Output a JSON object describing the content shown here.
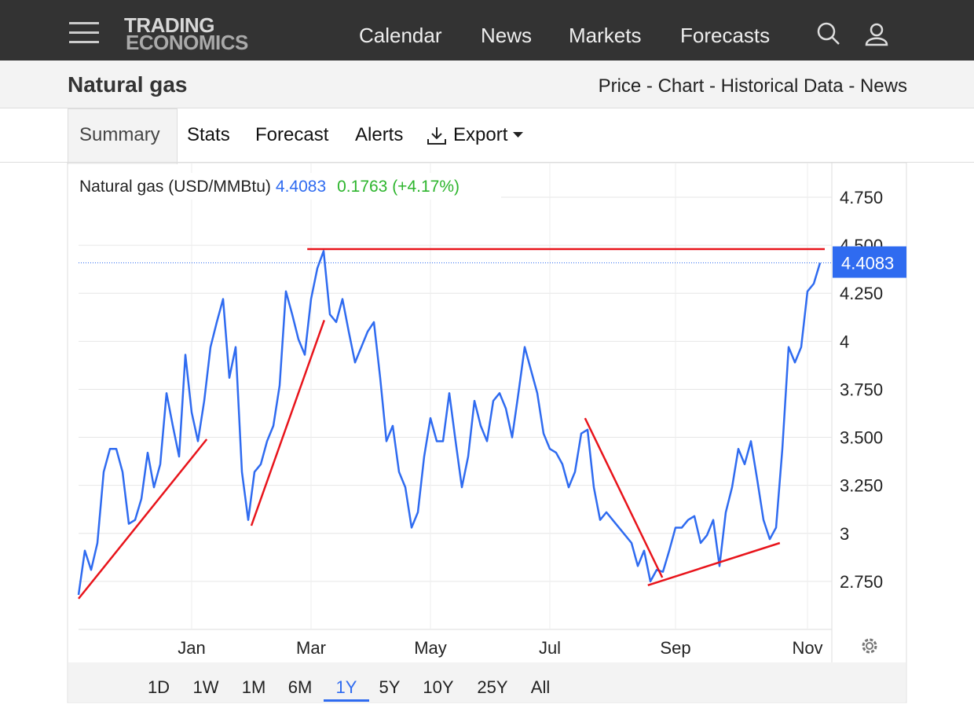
{
  "header": {
    "logo": [
      "TRADING",
      "ECONOMICS"
    ],
    "nav": [
      "Calendar",
      "News",
      "Markets",
      "Forecasts"
    ]
  },
  "title": "Natural gas",
  "links": "Price - Chart - Historical Data - News",
  "tabs": [
    "Summary",
    "Stats",
    "Forecast",
    "Alerts",
    "Export"
  ],
  "chart_data": {
    "type": "line",
    "title": "Natural gas (USD/MMBtu)",
    "change": "0.1763 (+4.17%)",
    "color": "#2f6bf0",
    "categories": [
      null,
      null,
      null,
      null,
      null,
      null,
      null,
      null,
      null,
      null,
      null,
      null,
      null,
      null,
      null,
      null,
      null,
      null,
      "Jan",
      null,
      null,
      null,
      null,
      null,
      null,
      null,
      null,
      null,
      null,
      null,
      null,
      null,
      null,
      null,
      null,
      null,
      null,
      "Mar",
      null,
      null,
      null,
      null,
      null,
      null,
      null,
      null,
      null,
      null,
      null,
      null,
      null,
      null,
      null,
      null,
      null,
      null,
      "May",
      null,
      null,
      null,
      null,
      null,
      null,
      null,
      null,
      null,
      null,
      null,
      null,
      null,
      null,
      null,
      null,
      null,
      null,
      "Jul",
      null,
      null,
      null,
      null,
      null,
      null,
      null,
      null,
      null,
      null,
      null,
      null,
      null,
      null,
      null,
      null,
      null,
      null,
      null,
      "Sep",
      null,
      null,
      null,
      null,
      null,
      null,
      null,
      null,
      null,
      null,
      null,
      null,
      null,
      null,
      null,
      null,
      null,
      null,
      null,
      null,
      "Nov",
      null,
      null
    ],
    "values": [
      2.68,
      2.91,
      2.81,
      2.95,
      3.32,
      3.44,
      3.44,
      3.32,
      3.05,
      3.07,
      3.18,
      3.42,
      3.24,
      3.36,
      3.73,
      3.56,
      3.4,
      3.93,
      3.63,
      3.48,
      3.69,
      3.97,
      4.1,
      4.22,
      3.81,
      3.97,
      3.32,
      3.07,
      3.32,
      3.36,
      3.48,
      3.56,
      3.77,
      4.26,
      4.14,
      4.01,
      3.93,
      4.22,
      4.38,
      4.47,
      4.14,
      4.1,
      4.22,
      4.05,
      3.89,
      3.97,
      4.05,
      4.1,
      3.81,
      3.48,
      3.56,
      3.32,
      3.24,
      3.03,
      3.11,
      3.4,
      3.6,
      3.48,
      3.48,
      3.73,
      3.48,
      3.24,
      3.4,
      3.69,
      3.56,
      3.48,
      3.69,
      3.73,
      3.65,
      3.5,
      3.73,
      3.97,
      3.85,
      3.73,
      3.52,
      3.44,
      3.42,
      3.36,
      3.24,
      3.32,
      3.52,
      3.54,
      3.24,
      3.07,
      3.11,
      3.07,
      3.03,
      2.99,
      2.95,
      2.83,
      2.91,
      2.75,
      2.81,
      2.8,
      2.91,
      3.03,
      3.03,
      3.07,
      3.09,
      2.95,
      2.99,
      3.07,
      2.83,
      3.11,
      3.24,
      3.44,
      3.36,
      3.48,
      3.28,
      3.07,
      2.97,
      3.03,
      3.44,
      3.97,
      3.89,
      3.97,
      4.26,
      4.3,
      4.4083
    ],
    "ylim": [
      2.5,
      4.93
    ],
    "yticks": [
      {
        "value": 2.75,
        "label": "2.750"
      },
      3,
      {
        "value": 3.25,
        "label": "3.250"
      },
      {
        "value": 3.5,
        "label": "3.500"
      },
      {
        "value": 3.75,
        "label": "3.750"
      },
      4,
      {
        "value": 4.25,
        "label": "4.250"
      },
      {
        "value": 4.5,
        "label": "4.500"
      },
      {
        "value": 4.75,
        "label": "4.750"
      }
    ],
    "grid": true,
    "trendline_color": "#e8141b",
    "trendlines": [
      {
        "x": [
          0,
          20.4
        ],
        "y": [
          2.66,
          3.49
        ]
      },
      {
        "x": [
          27.5,
          39.1
        ],
        "y": [
          3.04,
          4.11
        ]
      },
      {
        "x": [
          36.4,
          118.75
        ],
        "y": [
          4.48,
          4.48
        ]
      },
      {
        "x": [
          80.6,
          92.9
        ],
        "y": [
          3.6,
          2.77
        ]
      },
      {
        "x": [
          90.6,
          111.6
        ],
        "y": [
          2.73,
          2.95
        ]
      }
    ]
  },
  "ranges": [
    "1D",
    "1W",
    "1M",
    "6M",
    "1Y",
    "5Y",
    "10Y",
    "25Y",
    "All"
  ],
  "active_range": 4
}
